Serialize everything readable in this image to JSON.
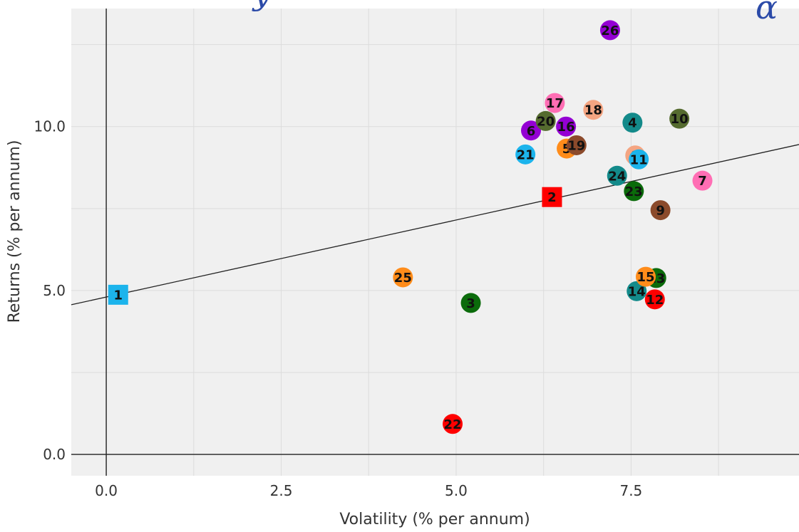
{
  "chart_data": {
    "type": "scatter",
    "title": "",
    "xlabel": "Volatility (% per annum)",
    "ylabel": "Returns (% per annum)",
    "xlim": [
      -0.5,
      9.9
    ],
    "ylim": [
      -0.65,
      13.6
    ],
    "x_ticks": [
      0.0,
      2.5,
      5.0,
      7.5
    ],
    "y_ticks": [
      0.0,
      5.0,
      10.0
    ],
    "x_tick_labels": [
      "0.0",
      "2.5",
      "5.0",
      "7.5"
    ],
    "y_tick_labels": [
      "0.0",
      "5.0",
      "10.0"
    ],
    "grid": true,
    "background": "#f0f0f0",
    "trend_line": {
      "intercept": 4.8,
      "slope": 0.47,
      "color": "#222222"
    },
    "points": [
      {
        "label": "1",
        "x": 0.17,
        "y": 4.87,
        "color": "#1cb4ec",
        "shape": "square"
      },
      {
        "label": "2",
        "x": 6.37,
        "y": 7.85,
        "color": "#ff0000",
        "shape": "square"
      },
      {
        "label": "3",
        "x": 5.21,
        "y": 4.62,
        "color": "#0b6b0b",
        "shape": "circle"
      },
      {
        "label": "4",
        "x": 7.52,
        "y": 10.12,
        "color": "#138a8a",
        "shape": "circle"
      },
      {
        "label": "5",
        "x": 6.58,
        "y": 9.33,
        "color": "#ff8c1a",
        "shape": "circle"
      },
      {
        "label": "6",
        "x": 6.07,
        "y": 9.88,
        "color": "#9400d3",
        "shape": "circle"
      },
      {
        "label": "7",
        "x": 8.52,
        "y": 8.35,
        "color": "#ff6eb4",
        "shape": "circle"
      },
      {
        "label": "8",
        "x": 7.56,
        "y": 9.12,
        "color": "#f4a582",
        "shape": "circle"
      },
      {
        "label": "9",
        "x": 7.92,
        "y": 7.45,
        "color": "#8b4a2b",
        "shape": "circle"
      },
      {
        "label": "10",
        "x": 8.19,
        "y": 10.24,
        "color": "#556b2f",
        "shape": "circle"
      },
      {
        "label": "11",
        "x": 7.61,
        "y": 9.0,
        "color": "#1cb4ec",
        "shape": "circle"
      },
      {
        "label": "12",
        "x": 7.84,
        "y": 4.73,
        "color": "#ff0000",
        "shape": "circle"
      },
      {
        "label": "13",
        "x": 7.86,
        "y": 5.38,
        "color": "#0b6b0b",
        "shape": "circle"
      },
      {
        "label": "14",
        "x": 7.58,
        "y": 4.98,
        "color": "#138a8a",
        "shape": "circle"
      },
      {
        "label": "15",
        "x": 7.71,
        "y": 5.42,
        "color": "#ff8c1a",
        "shape": "circle"
      },
      {
        "label": "16",
        "x": 6.57,
        "y": 10.0,
        "color": "#9400d3",
        "shape": "circle"
      },
      {
        "label": "17",
        "x": 6.41,
        "y": 10.72,
        "color": "#ff6eb4",
        "shape": "circle"
      },
      {
        "label": "18",
        "x": 6.96,
        "y": 10.51,
        "color": "#f4a582",
        "shape": "circle"
      },
      {
        "label": "19",
        "x": 6.72,
        "y": 9.43,
        "color": "#8b4a2b",
        "shape": "circle"
      },
      {
        "label": "20",
        "x": 6.28,
        "y": 10.17,
        "color": "#556b2f",
        "shape": "circle"
      },
      {
        "label": "21",
        "x": 5.99,
        "y": 9.15,
        "color": "#1cb4ec",
        "shape": "circle"
      },
      {
        "label": "22",
        "x": 4.95,
        "y": 0.93,
        "color": "#ff0000",
        "shape": "circle"
      },
      {
        "label": "23",
        "x": 7.54,
        "y": 8.03,
        "color": "#0b6b0b",
        "shape": "circle"
      },
      {
        "label": "24",
        "x": 7.3,
        "y": 8.5,
        "color": "#138a8a",
        "shape": "circle"
      },
      {
        "label": "25",
        "x": 4.24,
        "y": 5.4,
        "color": "#ff8c1a",
        "shape": "circle"
      },
      {
        "label": "26",
        "x": 7.2,
        "y": 12.94,
        "color": "#9400d3",
        "shape": "circle"
      }
    ]
  },
  "branding": {
    "logo_glyph": "α",
    "title_fragment": "y",
    "brand_color": "#2b4aa8"
  }
}
